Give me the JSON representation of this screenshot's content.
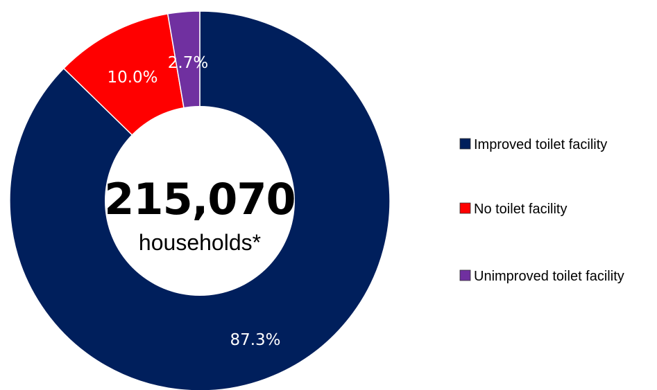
{
  "chart_data": {
    "type": "pie",
    "donut": true,
    "categories": [
      "Improved toilet facility",
      "No toilet facility",
      "Unimproved toilet facility"
    ],
    "values": [
      87.3,
      10.0,
      2.7
    ],
    "value_labels": [
      "87.3%",
      "10.0%",
      "2.7%"
    ],
    "colors": [
      "#001f5c",
      "#ff0000",
      "#7030a0"
    ],
    "label_colors": [
      "#ffffff",
      "#ffffff",
      "#ffffff"
    ],
    "center_value": "215,070",
    "center_label": "households*",
    "legend": {
      "placement": "right",
      "items": [
        {
          "label": "Improved toilet facility",
          "color": "#001f5c"
        },
        {
          "label": "No toilet facility",
          "color": "#ff0000"
        },
        {
          "label": "Unimproved toilet facility",
          "color": "#7030a0"
        }
      ]
    },
    "start_angle": "top",
    "direction": "clockwise"
  }
}
